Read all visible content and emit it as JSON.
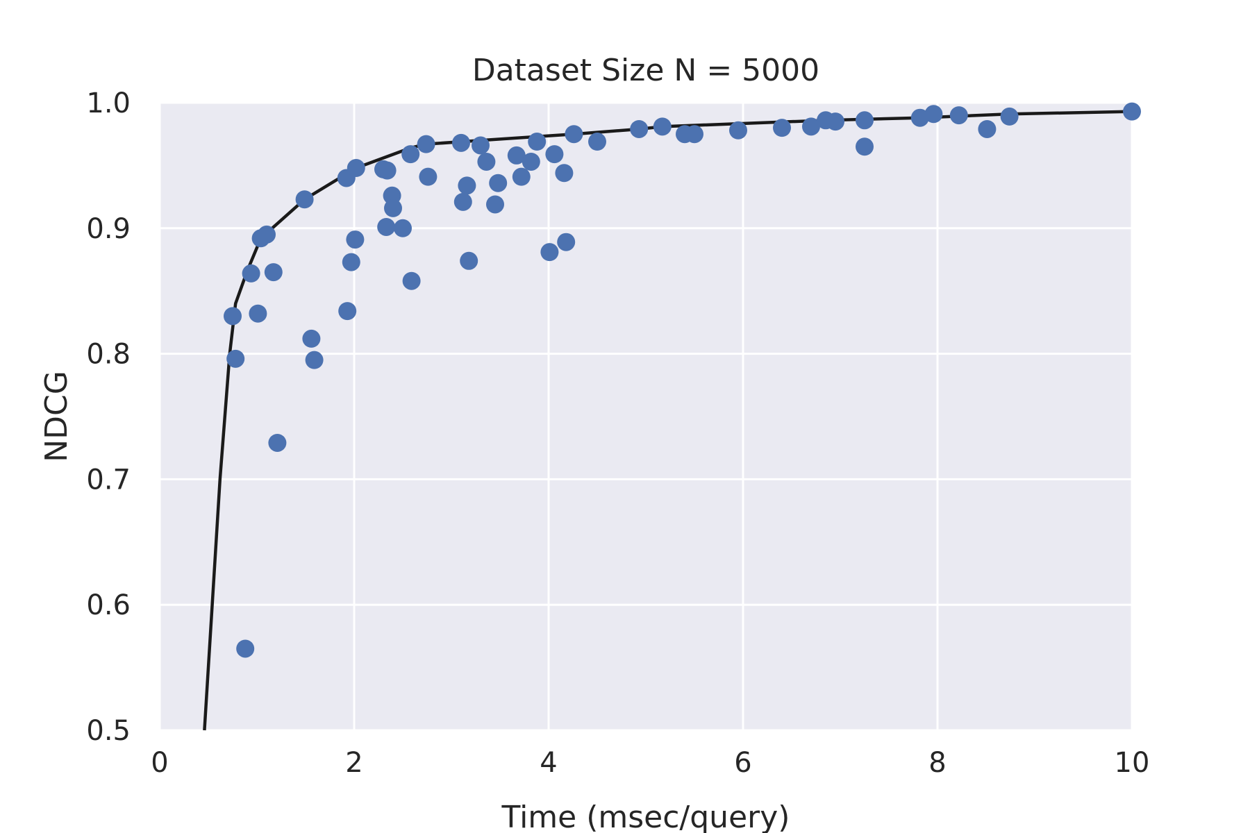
{
  "chart_data": {
    "type": "scatter",
    "title": "Dataset Size N = 5000",
    "xlabel": "Time (msec/query)",
    "ylabel": "NDCG",
    "xlim": [
      0,
      10
    ],
    "ylim": [
      0.5,
      1.0
    ],
    "xticks": [
      "0",
      "2",
      "4",
      "6",
      "8",
      "10"
    ],
    "yticks": [
      "0.5",
      "0.6",
      "0.7",
      "0.8",
      "0.9",
      "1.0"
    ],
    "grid": true,
    "colors": {
      "background": "#eaeaf2",
      "grid": "#ffffff",
      "points": "#4c72b0",
      "line": "#1a1a1a"
    },
    "series": [
      {
        "type": "scatter",
        "points": [
          {
            "x": 0.75,
            "y": 0.83
          },
          {
            "x": 0.78,
            "y": 0.796
          },
          {
            "x": 0.88,
            "y": 0.565
          },
          {
            "x": 0.94,
            "y": 0.864
          },
          {
            "x": 1.01,
            "y": 0.832
          },
          {
            "x": 1.04,
            "y": 0.892
          },
          {
            "x": 1.1,
            "y": 0.895
          },
          {
            "x": 1.17,
            "y": 0.865
          },
          {
            "x": 1.21,
            "y": 0.729
          },
          {
            "x": 1.49,
            "y": 0.923
          },
          {
            "x": 1.56,
            "y": 0.812
          },
          {
            "x": 1.59,
            "y": 0.795
          },
          {
            "x": 1.92,
            "y": 0.94
          },
          {
            "x": 1.93,
            "y": 0.834
          },
          {
            "x": 1.97,
            "y": 0.873
          },
          {
            "x": 2.01,
            "y": 0.891
          },
          {
            "x": 2.02,
            "y": 0.948
          },
          {
            "x": 2.3,
            "y": 0.947
          },
          {
            "x": 2.34,
            "y": 0.946
          },
          {
            "x": 2.33,
            "y": 0.901
          },
          {
            "x": 2.39,
            "y": 0.926
          },
          {
            "x": 2.4,
            "y": 0.916
          },
          {
            "x": 2.5,
            "y": 0.9
          },
          {
            "x": 2.58,
            "y": 0.959
          },
          {
            "x": 2.59,
            "y": 0.858
          },
          {
            "x": 2.74,
            "y": 0.967
          },
          {
            "x": 2.76,
            "y": 0.941
          },
          {
            "x": 3.1,
            "y": 0.968
          },
          {
            "x": 3.12,
            "y": 0.921
          },
          {
            "x": 3.16,
            "y": 0.934
          },
          {
            "x": 3.18,
            "y": 0.874
          },
          {
            "x": 3.3,
            "y": 0.966
          },
          {
            "x": 3.36,
            "y": 0.953
          },
          {
            "x": 3.45,
            "y": 0.919
          },
          {
            "x": 3.48,
            "y": 0.936
          },
          {
            "x": 3.67,
            "y": 0.958
          },
          {
            "x": 3.72,
            "y": 0.941
          },
          {
            "x": 3.82,
            "y": 0.953
          },
          {
            "x": 3.88,
            "y": 0.969
          },
          {
            "x": 4.01,
            "y": 0.881
          },
          {
            "x": 4.06,
            "y": 0.959
          },
          {
            "x": 4.16,
            "y": 0.944
          },
          {
            "x": 4.18,
            "y": 0.889
          },
          {
            "x": 4.26,
            "y": 0.975
          },
          {
            "x": 4.5,
            "y": 0.969
          },
          {
            "x": 4.93,
            "y": 0.979
          },
          {
            "x": 5.17,
            "y": 0.981
          },
          {
            "x": 5.4,
            "y": 0.975
          },
          {
            "x": 5.5,
            "y": 0.975
          },
          {
            "x": 5.95,
            "y": 0.978
          },
          {
            "x": 6.4,
            "y": 0.98
          },
          {
            "x": 6.7,
            "y": 0.981
          },
          {
            "x": 6.85,
            "y": 0.986
          },
          {
            "x": 6.95,
            "y": 0.985
          },
          {
            "x": 7.25,
            "y": 0.986
          },
          {
            "x": 7.25,
            "y": 0.965
          },
          {
            "x": 7.82,
            "y": 0.988
          },
          {
            "x": 7.96,
            "y": 0.991
          },
          {
            "x": 8.22,
            "y": 0.99
          },
          {
            "x": 8.51,
            "y": 0.979
          },
          {
            "x": 8.74,
            "y": 0.989
          },
          {
            "x": 10.0,
            "y": 0.993
          }
        ]
      },
      {
        "type": "line",
        "points": [
          {
            "x": 0.46,
            "y": 0.5
          },
          {
            "x": 0.62,
            "y": 0.7
          },
          {
            "x": 0.72,
            "y": 0.8
          },
          {
            "x": 0.78,
            "y": 0.84
          },
          {
            "x": 0.9,
            "y": 0.866
          },
          {
            "x": 1.04,
            "y": 0.892
          },
          {
            "x": 1.49,
            "y": 0.923
          },
          {
            "x": 2.02,
            "y": 0.948
          },
          {
            "x": 2.58,
            "y": 0.964
          },
          {
            "x": 2.74,
            "y": 0.967
          },
          {
            "x": 3.3,
            "y": 0.97
          },
          {
            "x": 4.26,
            "y": 0.975
          },
          {
            "x": 4.93,
            "y": 0.979
          },
          {
            "x": 5.17,
            "y": 0.981
          },
          {
            "x": 6.85,
            "y": 0.986
          },
          {
            "x": 7.82,
            "y": 0.988
          },
          {
            "x": 8.74,
            "y": 0.991
          },
          {
            "x": 10.0,
            "y": 0.993
          }
        ]
      }
    ]
  }
}
